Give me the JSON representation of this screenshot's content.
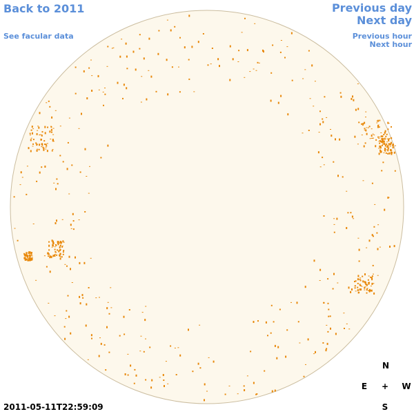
{
  "links": {
    "back": "Back to 2011",
    "facular": "See facular data",
    "previous_day": "Previous day",
    "next_day": "Next day",
    "previous_hour": "Previous hour",
    "next_hour": "Next hour"
  },
  "timestamp": "2011-05-11T22:59:09",
  "compass": {
    "north": "N",
    "east": "E",
    "center": "+",
    "west": "W",
    "south": "S"
  }
}
